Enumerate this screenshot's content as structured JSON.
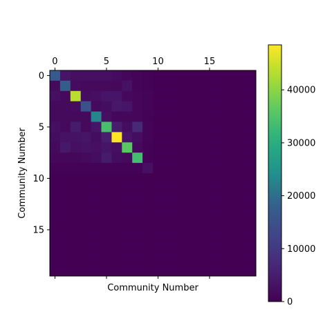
{
  "chart_data": {
    "type": "heatmap",
    "title": "",
    "xlabel": "Community Number",
    "ylabel": "Community Number",
    "rows": 20,
    "cols": 20,
    "x_ticks": [
      0,
      5,
      10,
      15
    ],
    "x_tick_labels": [
      "0",
      "5",
      "10",
      "15"
    ],
    "x_tick_label_position": "top",
    "y_ticks": [
      0,
      5,
      10,
      15
    ],
    "y_tick_labels": [
      "0",
      "5",
      "10",
      "15"
    ],
    "colormap": "viridis",
    "colorbar": {
      "min": 0,
      "max": 48500,
      "ticks": [
        0,
        10000,
        20000,
        30000,
        40000
      ],
      "tick_labels": [
        "0",
        "10000",
        "20000",
        "30000",
        "40000"
      ],
      "position": "right"
    },
    "values": [
      [
        17000,
        3500,
        2500,
        2500,
        2500,
        2500,
        1800,
        1000,
        500,
        300,
        0,
        0,
        0,
        0,
        0,
        0,
        0,
        0,
        0,
        0
      ],
      [
        1500,
        17500,
        1800,
        1500,
        1500,
        1500,
        1200,
        3000,
        500,
        300,
        0,
        0,
        0,
        0,
        0,
        0,
        0,
        0,
        0,
        0
      ],
      [
        2500,
        1500,
        43500,
        2000,
        2500,
        3500,
        3500,
        1200,
        1000,
        500,
        0,
        0,
        0,
        0,
        0,
        0,
        0,
        0,
        0,
        0
      ],
      [
        1500,
        1500,
        2000,
        15000,
        1500,
        2000,
        4000,
        3500,
        1000,
        500,
        0,
        0,
        0,
        0,
        0,
        0,
        0,
        0,
        0,
        0
      ],
      [
        1500,
        1500,
        1500,
        1500,
        23000,
        2500,
        1000,
        1000,
        1000,
        300,
        0,
        0,
        0,
        0,
        0,
        0,
        0,
        0,
        0,
        0
      ],
      [
        2500,
        1500,
        4500,
        1500,
        3500,
        34000,
        5000,
        2000,
        7000,
        500,
        0,
        0,
        0,
        0,
        0,
        0,
        0,
        0,
        0,
        0
      ],
      [
        2000,
        3000,
        3000,
        3500,
        2000,
        5000,
        48500,
        3500,
        2000,
        500,
        0,
        0,
        0,
        0,
        0,
        0,
        0,
        0,
        0,
        0
      ],
      [
        1500,
        4000,
        2500,
        3000,
        2500,
        3500,
        2500,
        36000,
        1500,
        300,
        0,
        0,
        0,
        0,
        0,
        0,
        0,
        0,
        0,
        0
      ],
      [
        1000,
        1000,
        1000,
        1500,
        2000,
        4500,
        2000,
        1500,
        33500,
        300,
        0,
        0,
        0,
        0,
        0,
        0,
        0,
        0,
        0,
        0
      ],
      [
        300,
        300,
        300,
        300,
        300,
        300,
        300,
        300,
        300,
        2500,
        0,
        0,
        0,
        0,
        0,
        0,
        0,
        0,
        0,
        0
      ],
      [
        0,
        0,
        0,
        0,
        0,
        0,
        0,
        0,
        0,
        0,
        0,
        0,
        0,
        0,
        0,
        0,
        0,
        0,
        0,
        0
      ],
      [
        0,
        0,
        0,
        0,
        0,
        0,
        0,
        0,
        0,
        0,
        0,
        0,
        0,
        0,
        0,
        0,
        0,
        0,
        0,
        0
      ],
      [
        0,
        0,
        0,
        0,
        0,
        0,
        0,
        0,
        0,
        0,
        0,
        0,
        0,
        0,
        0,
        0,
        0,
        0,
        0,
        0
      ],
      [
        0,
        0,
        0,
        0,
        0,
        0,
        0,
        0,
        0,
        0,
        0,
        0,
        0,
        0,
        0,
        0,
        0,
        0,
        0,
        0
      ],
      [
        0,
        0,
        0,
        0,
        0,
        0,
        0,
        0,
        0,
        0,
        0,
        0,
        0,
        0,
        0,
        0,
        0,
        0,
        0,
        0
      ],
      [
        0,
        0,
        0,
        0,
        0,
        0,
        0,
        0,
        0,
        0,
        0,
        0,
        0,
        0,
        0,
        0,
        0,
        0,
        0,
        0
      ],
      [
        0,
        0,
        0,
        0,
        0,
        0,
        0,
        0,
        0,
        0,
        0,
        0,
        0,
        0,
        0,
        0,
        0,
        0,
        0,
        0
      ],
      [
        0,
        0,
        0,
        0,
        0,
        0,
        0,
        0,
        0,
        0,
        0,
        0,
        0,
        0,
        0,
        0,
        0,
        0,
        0,
        0
      ],
      [
        0,
        0,
        0,
        0,
        0,
        0,
        0,
        0,
        0,
        0,
        0,
        0,
        0,
        0,
        0,
        0,
        0,
        0,
        0,
        0
      ],
      [
        0,
        0,
        0,
        0,
        0,
        0,
        0,
        0,
        0,
        0,
        0,
        0,
        0,
        0,
        0,
        0,
        0,
        0,
        0,
        0
      ]
    ]
  }
}
